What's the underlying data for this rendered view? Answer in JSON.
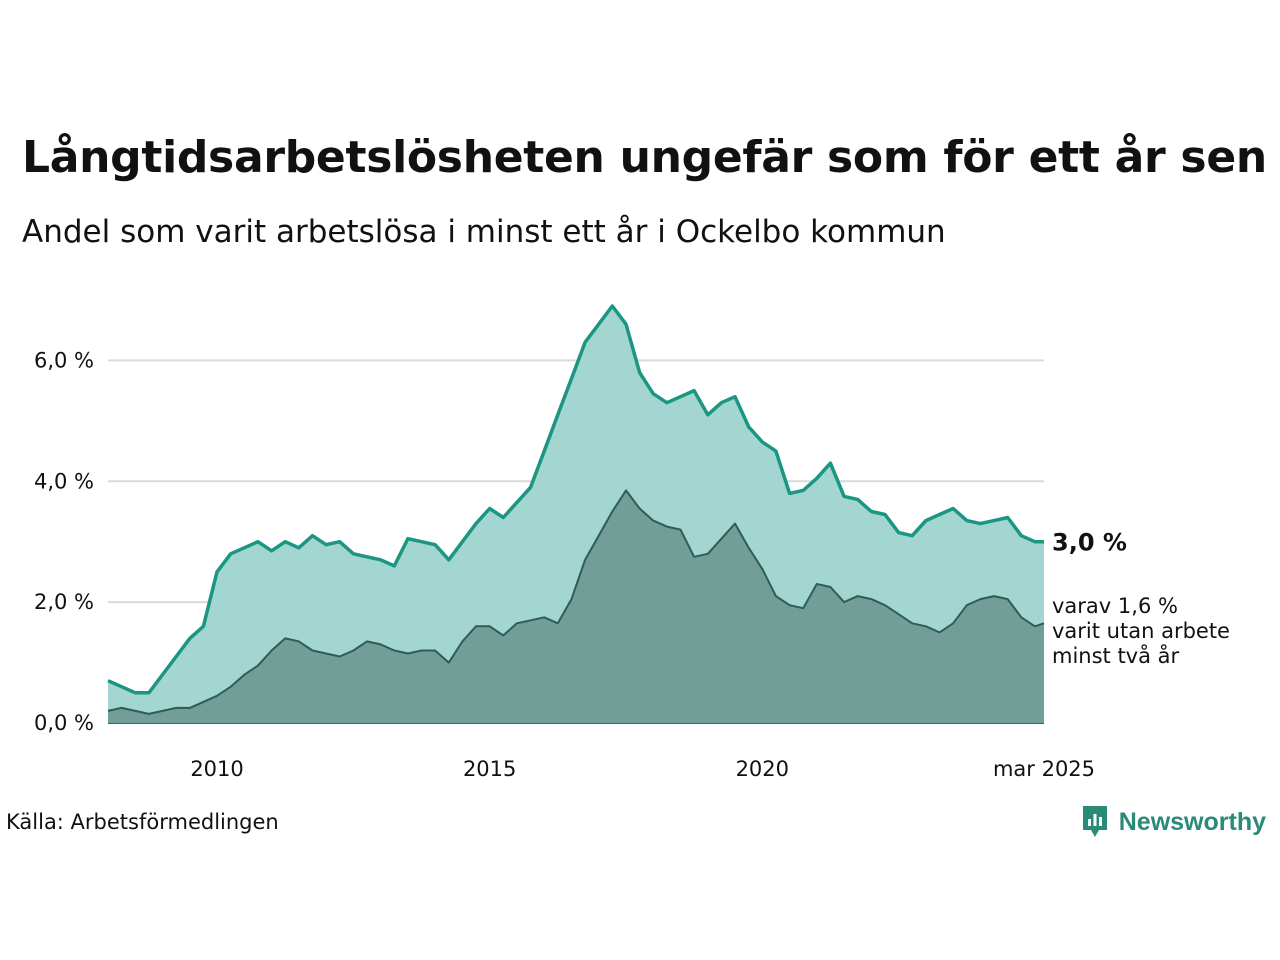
{
  "title": "Långtidsarbetslösheten ungefär som för ett år sen",
  "subtitle": "Andel som varit arbetslösa i minst ett år i Ockelbo kommun",
  "source": "Källa: Arbetsförmedlingen",
  "brand": {
    "name": "Newsworthy",
    "icon": "newsworthy-logo-icon"
  },
  "colors": {
    "total_line": "#1a9682",
    "total_fill": "#a3d6d0",
    "twoyear_line": "#2f5d56",
    "twoyear_fill": "#719f98",
    "grid": "#d9d9d9",
    "brand": "#2a8a78"
  },
  "chart_data": {
    "type": "area",
    "x_axis": {
      "type": "time",
      "start": "2008-01",
      "end": "2025-03",
      "ticks": [
        {
          "x": "2010-01",
          "label": "2010"
        },
        {
          "x": "2015-01",
          "label": "2015"
        },
        {
          "x": "2020-01",
          "label": "2020"
        },
        {
          "x": "2025-03",
          "label": "mar 2025"
        }
      ]
    },
    "y_axis": {
      "range": [
        0,
        7
      ],
      "ticks": [
        {
          "value": 0,
          "label": "0,0 %"
        },
        {
          "value": 2,
          "label": "2,0 %"
        },
        {
          "value": 4,
          "label": "4,0 %"
        },
        {
          "value": 6,
          "label": "6,0 %"
        }
      ],
      "grid": true
    },
    "series": [
      {
        "key": "total",
        "last_label": "3,0 %",
        "points": [
          [
            "2008-01",
            0.7
          ],
          [
            "2008-04",
            0.6
          ],
          [
            "2008-07",
            0.5
          ],
          [
            "2008-10",
            0.5
          ],
          [
            "2009-01",
            0.8
          ],
          [
            "2009-04",
            1.1
          ],
          [
            "2009-07",
            1.4
          ],
          [
            "2009-10",
            1.6
          ],
          [
            "2010-01",
            2.5
          ],
          [
            "2010-04",
            2.8
          ],
          [
            "2010-07",
            2.9
          ],
          [
            "2010-10",
            3.0
          ],
          [
            "2011-01",
            2.85
          ],
          [
            "2011-04",
            3.0
          ],
          [
            "2011-07",
            2.9
          ],
          [
            "2011-10",
            3.1
          ],
          [
            "2012-01",
            2.95
          ],
          [
            "2012-04",
            3.0
          ],
          [
            "2012-07",
            2.8
          ],
          [
            "2012-10",
            2.75
          ],
          [
            "2013-01",
            2.7
          ],
          [
            "2013-04",
            2.6
          ],
          [
            "2013-07",
            3.05
          ],
          [
            "2013-10",
            3.0
          ],
          [
            "2014-01",
            2.95
          ],
          [
            "2014-04",
            2.7
          ],
          [
            "2014-07",
            3.0
          ],
          [
            "2014-10",
            3.3
          ],
          [
            "2015-01",
            3.55
          ],
          [
            "2015-04",
            3.4
          ],
          [
            "2015-07",
            3.65
          ],
          [
            "2015-10",
            3.9
          ],
          [
            "2016-01",
            4.5
          ],
          [
            "2016-04",
            5.1
          ],
          [
            "2016-07",
            5.7
          ],
          [
            "2016-10",
            6.3
          ],
          [
            "2017-01",
            6.6
          ],
          [
            "2017-04",
            6.9
          ],
          [
            "2017-07",
            6.6
          ],
          [
            "2017-10",
            5.8
          ],
          [
            "2018-01",
            5.45
          ],
          [
            "2018-04",
            5.3
          ],
          [
            "2018-07",
            5.4
          ],
          [
            "2018-10",
            5.5
          ],
          [
            "2019-01",
            5.1
          ],
          [
            "2019-04",
            5.3
          ],
          [
            "2019-07",
            5.4
          ],
          [
            "2019-10",
            4.9
          ],
          [
            "2020-01",
            4.65
          ],
          [
            "2020-04",
            4.5
          ],
          [
            "2020-07",
            3.8
          ],
          [
            "2020-10",
            3.85
          ],
          [
            "2021-01",
            4.05
          ],
          [
            "2021-04",
            4.3
          ],
          [
            "2021-07",
            3.75
          ],
          [
            "2021-10",
            3.7
          ],
          [
            "2022-01",
            3.5
          ],
          [
            "2022-04",
            3.45
          ],
          [
            "2022-07",
            3.15
          ],
          [
            "2022-10",
            3.1
          ],
          [
            "2023-01",
            3.35
          ],
          [
            "2023-04",
            3.45
          ],
          [
            "2023-07",
            3.55
          ],
          [
            "2023-10",
            3.35
          ],
          [
            "2024-01",
            3.3
          ],
          [
            "2024-04",
            3.35
          ],
          [
            "2024-07",
            3.4
          ],
          [
            "2024-10",
            3.1
          ],
          [
            "2025-01",
            3.0
          ],
          [
            "2025-03",
            3.0
          ]
        ]
      },
      {
        "key": "two_years",
        "last_label": [
          "varav 1,6 %",
          "varit utan arbete",
          "minst två år"
        ],
        "points": [
          [
            "2008-01",
            0.2
          ],
          [
            "2008-04",
            0.25
          ],
          [
            "2008-07",
            0.2
          ],
          [
            "2008-10",
            0.15
          ],
          [
            "2009-01",
            0.2
          ],
          [
            "2009-04",
            0.25
          ],
          [
            "2009-07",
            0.25
          ],
          [
            "2009-10",
            0.35
          ],
          [
            "2010-01",
            0.45
          ],
          [
            "2010-04",
            0.6
          ],
          [
            "2010-07",
            0.8
          ],
          [
            "2010-10",
            0.95
          ],
          [
            "2011-01",
            1.2
          ],
          [
            "2011-04",
            1.4
          ],
          [
            "2011-07",
            1.35
          ],
          [
            "2011-10",
            1.2
          ],
          [
            "2012-01",
            1.15
          ],
          [
            "2012-04",
            1.1
          ],
          [
            "2012-07",
            1.2
          ],
          [
            "2012-10",
            1.35
          ],
          [
            "2013-01",
            1.3
          ],
          [
            "2013-04",
            1.2
          ],
          [
            "2013-07",
            1.15
          ],
          [
            "2013-10",
            1.2
          ],
          [
            "2014-01",
            1.2
          ],
          [
            "2014-04",
            1.0
          ],
          [
            "2014-07",
            1.35
          ],
          [
            "2014-10",
            1.6
          ],
          [
            "2015-01",
            1.6
          ],
          [
            "2015-04",
            1.45
          ],
          [
            "2015-07",
            1.65
          ],
          [
            "2015-10",
            1.7
          ],
          [
            "2016-01",
            1.75
          ],
          [
            "2016-04",
            1.65
          ],
          [
            "2016-07",
            2.05
          ],
          [
            "2016-10",
            2.7
          ],
          [
            "2017-01",
            3.1
          ],
          [
            "2017-04",
            3.5
          ],
          [
            "2017-07",
            3.85
          ],
          [
            "2017-10",
            3.55
          ],
          [
            "2018-01",
            3.35
          ],
          [
            "2018-04",
            3.25
          ],
          [
            "2018-07",
            3.2
          ],
          [
            "2018-10",
            2.75
          ],
          [
            "2019-01",
            2.8
          ],
          [
            "2019-04",
            3.05
          ],
          [
            "2019-07",
            3.3
          ],
          [
            "2019-10",
            2.9
          ],
          [
            "2020-01",
            2.55
          ],
          [
            "2020-04",
            2.1
          ],
          [
            "2020-07",
            1.95
          ],
          [
            "2020-10",
            1.9
          ],
          [
            "2021-01",
            2.3
          ],
          [
            "2021-04",
            2.25
          ],
          [
            "2021-07",
            2.0
          ],
          [
            "2021-10",
            2.1
          ],
          [
            "2022-01",
            2.05
          ],
          [
            "2022-04",
            1.95
          ],
          [
            "2022-07",
            1.8
          ],
          [
            "2022-10",
            1.65
          ],
          [
            "2023-01",
            1.6
          ],
          [
            "2023-04",
            1.5
          ],
          [
            "2023-07",
            1.65
          ],
          [
            "2023-10",
            1.95
          ],
          [
            "2024-01",
            2.05
          ],
          [
            "2024-04",
            2.1
          ],
          [
            "2024-07",
            2.05
          ],
          [
            "2024-10",
            1.75
          ],
          [
            "2025-01",
            1.6
          ],
          [
            "2025-03",
            1.65
          ]
        ]
      }
    ]
  }
}
